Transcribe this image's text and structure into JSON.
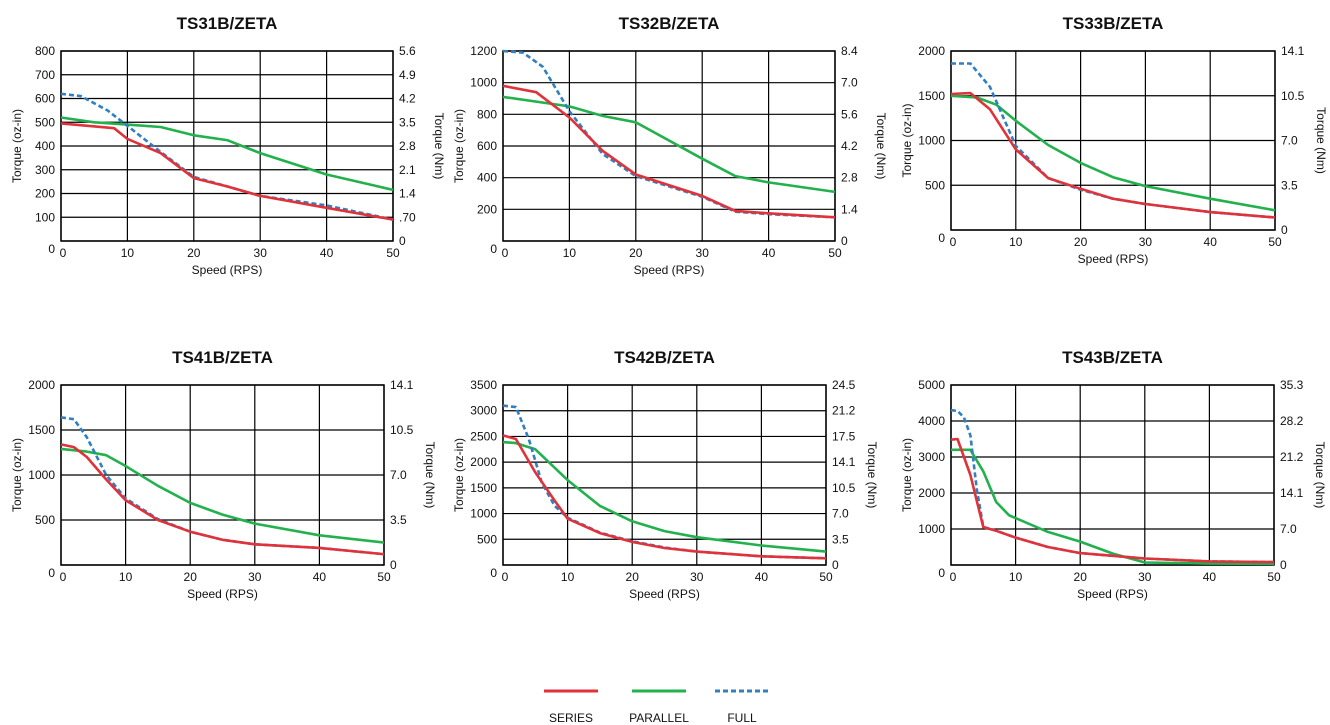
{
  "colors": {
    "series": "#e0323a",
    "parallel": "#22b14c",
    "full": "#2f7fc1",
    "grid": "#000000"
  },
  "legend": {
    "placement": "bottom-center",
    "labels": [
      "SERIES",
      "PARALLEL",
      "FULL"
    ]
  },
  "chart_data": [
    {
      "type": "line",
      "title": "TS31B/ZETA",
      "xlabel": "Speed (RPS)",
      "ylabel": "Torque (oz-in)",
      "y2label": "Torque (Nm)",
      "xlim": [
        0,
        50
      ],
      "ylim": [
        0,
        800
      ],
      "xticks": [
        0,
        10,
        20,
        30,
        40,
        50
      ],
      "yticks": [
        0,
        100,
        200,
        300,
        400,
        500,
        600,
        700,
        800
      ],
      "y2ticks": [
        "0",
        ".70",
        "1.4",
        "2.1",
        "2.8",
        "3.5",
        "4.2",
        "4.9",
        "5.6"
      ],
      "grid": true,
      "series": [
        {
          "name": "SERIES",
          "x": [
            0,
            8,
            10,
            15,
            20,
            25,
            30,
            40,
            50
          ],
          "y": [
            495,
            475,
            430,
            370,
            265,
            230,
            190,
            140,
            90
          ]
        },
        {
          "name": "PARALLEL",
          "x": [
            0,
            5,
            10,
            15,
            20,
            25,
            30,
            40,
            50
          ],
          "y": [
            520,
            500,
            490,
            480,
            445,
            425,
            370,
            280,
            215
          ]
        },
        {
          "name": "FULL",
          "x": [
            0,
            3,
            7,
            10,
            15,
            20,
            25,
            30,
            40,
            50
          ],
          "y": [
            620,
            610,
            550,
            485,
            375,
            270,
            230,
            190,
            150,
            90
          ]
        }
      ]
    },
    {
      "type": "line",
      "title": "TS32B/ZETA",
      "xlabel": "Speed (RPS)",
      "ylabel": "Torque (oz-in)",
      "y2label": "Torque (Nm)",
      "xlim": [
        0,
        50
      ],
      "ylim": [
        0,
        1200
      ],
      "xticks": [
        0,
        10,
        20,
        30,
        40,
        50
      ],
      "yticks": [
        0,
        200,
        400,
        600,
        800,
        1000,
        1200
      ],
      "y2ticks": [
        "0",
        "1.4",
        "2.8",
        "4.2",
        "5.6",
        "7.0",
        "8.4"
      ],
      "grid": true,
      "series": [
        {
          "name": "SERIES",
          "x": [
            0,
            5,
            10,
            15,
            20,
            30,
            35,
            40,
            50
          ],
          "y": [
            980,
            940,
            780,
            570,
            420,
            285,
            190,
            175,
            150
          ]
        },
        {
          "name": "PARALLEL",
          "x": [
            0,
            10,
            15,
            20,
            30,
            35,
            40,
            50
          ],
          "y": [
            910,
            850,
            790,
            750,
            520,
            410,
            370,
            310
          ]
        },
        {
          "name": "FULL",
          "x": [
            0,
            3,
            6,
            10,
            15,
            20,
            30,
            35,
            40,
            50
          ],
          "y": [
            1200,
            1190,
            1100,
            820,
            550,
            410,
            280,
            185,
            170,
            150
          ]
        }
      ]
    },
    {
      "type": "line",
      "title": "TS33B/ZETA",
      "xlabel": "Speed (RPS)",
      "ylabel": "Torque (oz-in)",
      "y2label": "Torque (Nm)",
      "xlim": [
        0,
        50
      ],
      "ylim": [
        0,
        2000
      ],
      "xticks": [
        0,
        10,
        20,
        30,
        40,
        50
      ],
      "yticks": [
        0,
        500,
        1000,
        1500,
        2000
      ],
      "y2ticks": [
        "0",
        "3.5",
        "7.0",
        "10.5",
        "14.1"
      ],
      "grid": true,
      "series": [
        {
          "name": "SERIES",
          "x": [
            0,
            3,
            6,
            10,
            15,
            20,
            25,
            30,
            40,
            50
          ],
          "y": [
            1520,
            1530,
            1350,
            900,
            580,
            460,
            350,
            290,
            200,
            140
          ]
        },
        {
          "name": "PARALLEL",
          "x": [
            0,
            4,
            7,
            10,
            15,
            20,
            25,
            30,
            40,
            50
          ],
          "y": [
            1500,
            1480,
            1400,
            1220,
            950,
            750,
            590,
            490,
            350,
            220
          ]
        },
        {
          "name": "FULL",
          "x": [
            0,
            3,
            6,
            10,
            15,
            20,
            25,
            30,
            40,
            50
          ],
          "y": [
            1860,
            1860,
            1600,
            940,
            580,
            450,
            350,
            290,
            200,
            140
          ]
        }
      ]
    },
    {
      "type": "line",
      "title": "TS41B/ZETA",
      "xlabel": "Speed (RPS)",
      "ylabel": "Torque (oz-in)",
      "y2label": "Torque (Nm)",
      "xlim": [
        0,
        50
      ],
      "ylim": [
        0,
        2000
      ],
      "xticks": [
        0,
        10,
        20,
        30,
        40,
        50
      ],
      "yticks": [
        0,
        500,
        1000,
        1500,
        2000
      ],
      "y2ticks": [
        "0",
        "3.5",
        "7.0",
        "10.5",
        "14.1"
      ],
      "grid": true,
      "series": [
        {
          "name": "SERIES",
          "x": [
            0,
            2,
            4,
            7,
            10,
            15,
            20,
            25,
            30,
            40,
            50
          ],
          "y": [
            1340,
            1310,
            1200,
            950,
            720,
            500,
            370,
            280,
            230,
            190,
            120
          ]
        },
        {
          "name": "PARALLEL",
          "x": [
            0,
            4,
            7,
            10,
            15,
            20,
            25,
            30,
            40,
            50
          ],
          "y": [
            1290,
            1260,
            1220,
            1100,
            880,
            690,
            560,
            460,
            330,
            250
          ]
        },
        {
          "name": "FULL",
          "x": [
            0,
            2,
            4,
            7,
            10,
            15,
            20,
            25,
            30,
            40,
            50
          ],
          "y": [
            1640,
            1620,
            1420,
            1000,
            740,
            510,
            370,
            280,
            230,
            190,
            120
          ]
        }
      ]
    },
    {
      "type": "line",
      "title": "TS42B/ZETA",
      "xlabel": "Speed (RPS)",
      "ylabel": "Torque (oz-in)",
      "y2label": "Torque (Nm)",
      "xlim": [
        0,
        50
      ],
      "ylim": [
        0,
        3500
      ],
      "xticks": [
        0,
        10,
        20,
        30,
        40,
        50
      ],
      "yticks": [
        0,
        500,
        1000,
        1500,
        2000,
        2500,
        3000,
        3500
      ],
      "y2ticks": [
        "0",
        "3.5",
        "7.0",
        "10.5",
        "14.1",
        "17.5",
        "21.2",
        "24.5"
      ],
      "grid": true,
      "series": [
        {
          "name": "SERIES",
          "x": [
            0,
            2,
            5,
            8,
            10,
            15,
            20,
            25,
            30,
            40,
            50
          ],
          "y": [
            2520,
            2450,
            1800,
            1250,
            900,
            620,
            450,
            330,
            260,
            170,
            130
          ]
        },
        {
          "name": "PARALLEL",
          "x": [
            0,
            2,
            5,
            10,
            15,
            20,
            25,
            30,
            40,
            50
          ],
          "y": [
            2390,
            2370,
            2250,
            1650,
            1150,
            850,
            660,
            540,
            380,
            260
          ]
        },
        {
          "name": "FULL",
          "x": [
            0,
            2,
            4,
            6,
            8,
            10,
            15,
            20,
            25,
            30,
            40,
            50
          ],
          "y": [
            3100,
            3070,
            2450,
            1600,
            1150,
            920,
            630,
            460,
            340,
            260,
            170,
            130
          ]
        }
      ]
    },
    {
      "type": "line",
      "title": "TS43B/ZETA",
      "xlabel": "Speed (RPS)",
      "ylabel": "Torque (oz-in)",
      "y2label": "Torque (Nm)",
      "xlim": [
        0,
        50
      ],
      "ylim": [
        0,
        5000
      ],
      "xticks": [
        0,
        10,
        20,
        30,
        40,
        50
      ],
      "yticks": [
        0,
        1000,
        2000,
        3000,
        4000,
        5000
      ],
      "y2ticks": [
        "0",
        "7.0",
        "14.1",
        "21.2",
        "28.2",
        "35.3"
      ],
      "grid": true,
      "series": [
        {
          "name": "SERIES",
          "x": [
            0,
            1,
            3,
            5,
            7,
            10,
            15,
            20,
            30,
            40,
            50
          ],
          "y": [
            3480,
            3500,
            2500,
            1050,
            950,
            760,
            500,
            330,
            180,
            100,
            80
          ]
        },
        {
          "name": "PARALLEL",
          "x": [
            0,
            2,
            3,
            5,
            7,
            9,
            15,
            20,
            25,
            30,
            40,
            50
          ],
          "y": [
            3200,
            3200,
            3200,
            2600,
            1750,
            1380,
            920,
            650,
            320,
            70,
            40,
            30
          ]
        },
        {
          "name": "FULL",
          "x": [
            0,
            1,
            2,
            3,
            4,
            5,
            7,
            10,
            15,
            20,
            30,
            40,
            50
          ],
          "y": [
            4300,
            4280,
            4100,
            3600,
            2100,
            1060,
            950,
            760,
            500,
            330,
            180,
            100,
            80
          ]
        }
      ]
    }
  ]
}
